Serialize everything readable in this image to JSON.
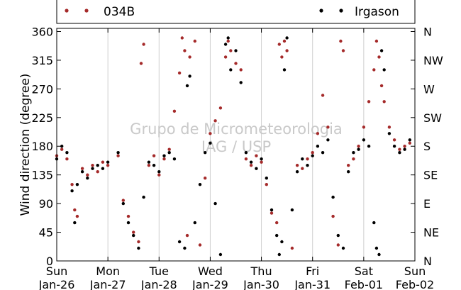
{
  "chart_data": {
    "type": "scatter",
    "ylabel": "Wind direction (degree)",
    "ylim": [
      0,
      365
    ],
    "xlim": [
      0,
      7
    ],
    "yticks": [
      0,
      45,
      90,
      135,
      180,
      225,
      270,
      315,
      360
    ],
    "xticks": [
      {
        "x": 0,
        "day": "Sun",
        "date": "Jan-26"
      },
      {
        "x": 1,
        "day": "Mon",
        "date": "Jan-27"
      },
      {
        "x": 2,
        "day": "Tue",
        "date": "Jan-28"
      },
      {
        "x": 3,
        "day": "Wed",
        "date": "Jan-29"
      },
      {
        "x": 4,
        "day": "Thu",
        "date": "Jan-30"
      },
      {
        "x": 5,
        "day": "Fri",
        "date": "Jan-31"
      },
      {
        "x": 6,
        "day": "Sat",
        "date": "Feb-01"
      },
      {
        "x": 7,
        "day": "Sun",
        "date": "Feb-02"
      }
    ],
    "right_ticks": [
      {
        "value": 0,
        "label": "N"
      },
      {
        "value": 45,
        "label": "NE"
      },
      {
        "value": 90,
        "label": "E"
      },
      {
        "value": 135,
        "label": "SE"
      },
      {
        "value": 180,
        "label": "S"
      },
      {
        "value": 225,
        "label": "SW"
      },
      {
        "value": 270,
        "label": "W"
      },
      {
        "value": 315,
        "label": "NW"
      },
      {
        "value": 360,
        "label": "N"
      }
    ],
    "grid": "vertical at day boundaries",
    "legend_position": "top",
    "series": [
      {
        "name": "034B",
        "color": "#a52a2a",
        "points": [
          [
            0.0,
            165
          ],
          [
            0.1,
            175
          ],
          [
            0.2,
            160
          ],
          [
            0.3,
            120
          ],
          [
            0.35,
            80
          ],
          [
            0.4,
            70
          ],
          [
            0.5,
            145
          ],
          [
            0.6,
            135
          ],
          [
            0.7,
            150
          ],
          [
            0.8,
            140
          ],
          [
            0.9,
            155
          ],
          [
            1.0,
            150
          ],
          [
            1.2,
            165
          ],
          [
            1.3,
            95
          ],
          [
            1.4,
            70
          ],
          [
            1.5,
            45
          ],
          [
            1.6,
            30
          ],
          [
            1.65,
            310
          ],
          [
            1.7,
            340
          ],
          [
            1.8,
            150
          ],
          [
            1.9,
            165
          ],
          [
            2.0,
            135
          ],
          [
            2.1,
            160
          ],
          [
            2.2,
            175
          ],
          [
            2.3,
            235
          ],
          [
            2.4,
            295
          ],
          [
            2.45,
            350
          ],
          [
            2.5,
            330
          ],
          [
            2.55,
            40
          ],
          [
            2.6,
            320
          ],
          [
            2.7,
            345
          ],
          [
            2.8,
            25
          ],
          [
            2.9,
            130
          ],
          [
            3.0,
            200
          ],
          [
            3.1,
            220
          ],
          [
            3.2,
            240
          ],
          [
            3.3,
            320
          ],
          [
            3.35,
            345
          ],
          [
            3.4,
            330
          ],
          [
            3.5,
            310
          ],
          [
            3.6,
            300
          ],
          [
            3.7,
            160
          ],
          [
            3.8,
            150
          ],
          [
            3.9,
            165
          ],
          [
            4.0,
            155
          ],
          [
            4.1,
            120
          ],
          [
            4.2,
            75
          ],
          [
            4.3,
            60
          ],
          [
            4.35,
            340
          ],
          [
            4.4,
            320
          ],
          [
            4.45,
            345
          ],
          [
            4.5,
            330
          ],
          [
            4.6,
            20
          ],
          [
            4.7,
            150
          ],
          [
            4.8,
            145
          ],
          [
            4.9,
            160
          ],
          [
            5.0,
            170
          ],
          [
            5.1,
            200
          ],
          [
            5.2,
            260
          ],
          [
            5.3,
            210
          ],
          [
            5.4,
            70
          ],
          [
            5.5,
            25
          ],
          [
            5.55,
            345
          ],
          [
            5.6,
            330
          ],
          [
            5.7,
            150
          ],
          [
            5.8,
            160
          ],
          [
            5.9,
            180
          ],
          [
            6.0,
            210
          ],
          [
            6.1,
            250
          ],
          [
            6.2,
            300
          ],
          [
            6.25,
            345
          ],
          [
            6.3,
            320
          ],
          [
            6.35,
            275
          ],
          [
            6.4,
            250
          ],
          [
            6.5,
            210
          ],
          [
            6.6,
            190
          ],
          [
            6.7,
            175
          ],
          [
            6.8,
            180
          ],
          [
            6.9,
            185
          ]
        ]
      },
      {
        "name": "Irgason",
        "color": "#000000",
        "points": [
          [
            0.0,
            160
          ],
          [
            0.1,
            180
          ],
          [
            0.2,
            170
          ],
          [
            0.3,
            110
          ],
          [
            0.35,
            60
          ],
          [
            0.4,
            120
          ],
          [
            0.5,
            140
          ],
          [
            0.6,
            130
          ],
          [
            0.7,
            145
          ],
          [
            0.8,
            150
          ],
          [
            0.9,
            145
          ],
          [
            1.0,
            155
          ],
          [
            1.2,
            170
          ],
          [
            1.3,
            90
          ],
          [
            1.4,
            60
          ],
          [
            1.5,
            40
          ],
          [
            1.6,
            20
          ],
          [
            1.7,
            100
          ],
          [
            1.8,
            155
          ],
          [
            1.9,
            150
          ],
          [
            2.0,
            140
          ],
          [
            2.1,
            165
          ],
          [
            2.2,
            170
          ],
          [
            2.3,
            160
          ],
          [
            2.4,
            30
          ],
          [
            2.5,
            20
          ],
          [
            2.55,
            275
          ],
          [
            2.6,
            290
          ],
          [
            2.7,
            60
          ],
          [
            2.8,
            120
          ],
          [
            2.9,
            170
          ],
          [
            3.0,
            185
          ],
          [
            3.1,
            90
          ],
          [
            3.2,
            10
          ],
          [
            3.3,
            340
          ],
          [
            3.35,
            350
          ],
          [
            3.4,
            300
          ],
          [
            3.5,
            330
          ],
          [
            3.6,
            280
          ],
          [
            3.7,
            170
          ],
          [
            3.8,
            155
          ],
          [
            3.9,
            145
          ],
          [
            4.0,
            160
          ],
          [
            4.1,
            130
          ],
          [
            4.2,
            80
          ],
          [
            4.3,
            40
          ],
          [
            4.35,
            10
          ],
          [
            4.4,
            30
          ],
          [
            4.45,
            300
          ],
          [
            4.5,
            350
          ],
          [
            4.6,
            80
          ],
          [
            4.7,
            140
          ],
          [
            4.8,
            160
          ],
          [
            4.9,
            150
          ],
          [
            5.0,
            165
          ],
          [
            5.1,
            180
          ],
          [
            5.2,
            170
          ],
          [
            5.3,
            190
          ],
          [
            5.4,
            100
          ],
          [
            5.5,
            40
          ],
          [
            5.6,
            20
          ],
          [
            5.7,
            140
          ],
          [
            5.8,
            170
          ],
          [
            5.9,
            175
          ],
          [
            6.0,
            190
          ],
          [
            6.1,
            180
          ],
          [
            6.2,
            60
          ],
          [
            6.25,
            20
          ],
          [
            6.3,
            10
          ],
          [
            6.35,
            330
          ],
          [
            6.4,
            300
          ],
          [
            6.5,
            200
          ],
          [
            6.6,
            180
          ],
          [
            6.7,
            170
          ],
          [
            6.8,
            175
          ],
          [
            6.9,
            190
          ]
        ]
      }
    ],
    "watermark": [
      "Grupo de Micrometeorologia",
      "IAG / USP"
    ]
  }
}
